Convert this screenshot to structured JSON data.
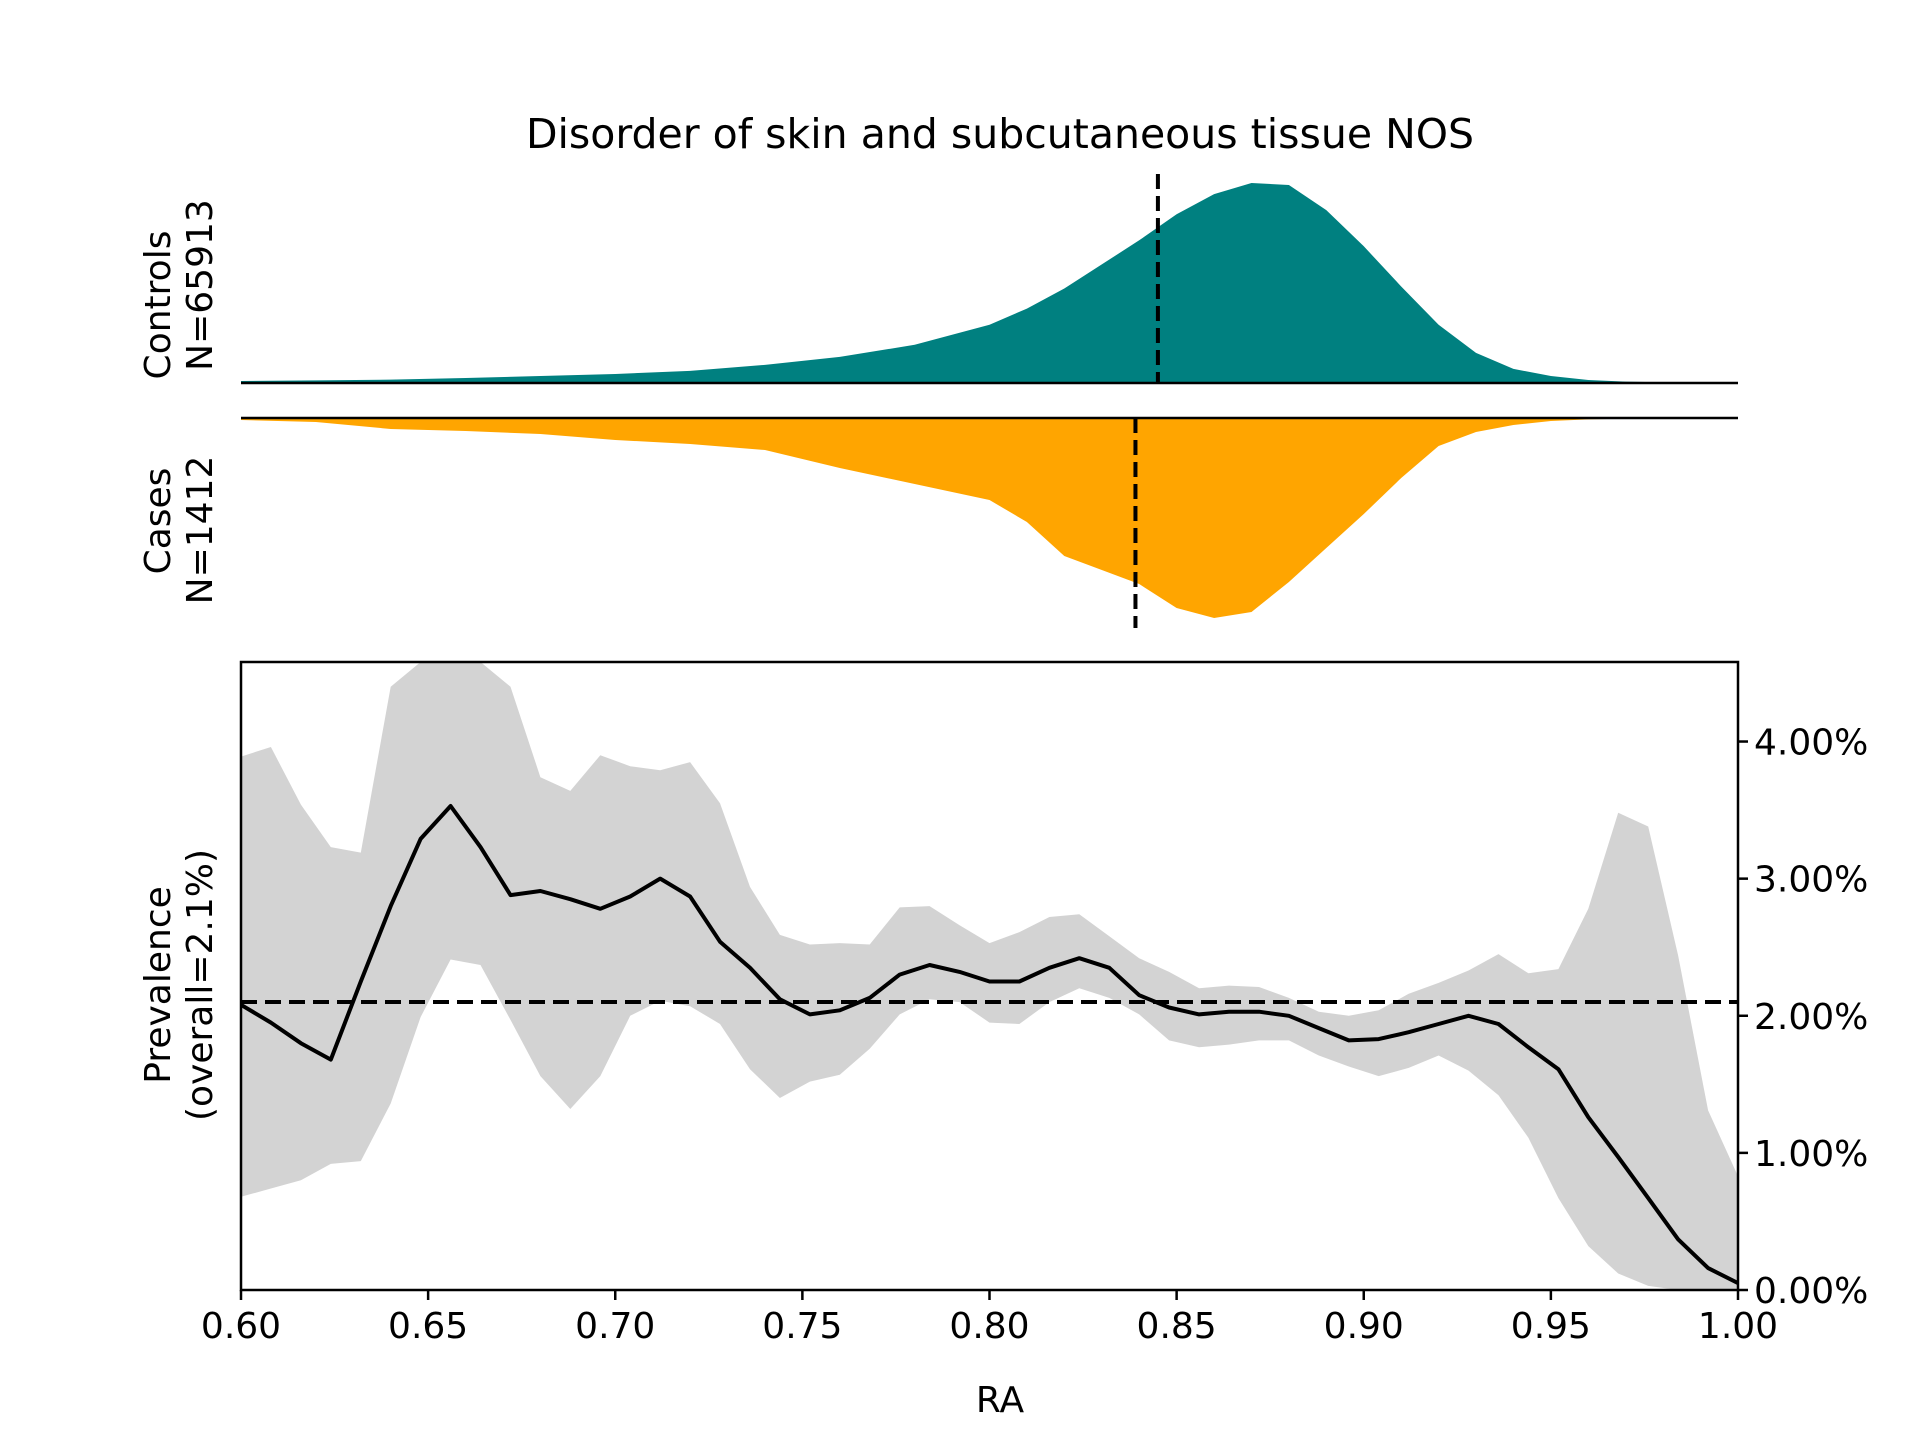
{
  "chart_data": [
    {
      "type": "area",
      "title": "Disorder of skin and subcutaneous tissue NOS",
      "label": "Controls",
      "n_label": "N=65913",
      "color": "#008080",
      "dashed_line_x": 0.845,
      "x": [
        0.6,
        0.62,
        0.64,
        0.66,
        0.68,
        0.7,
        0.72,
        0.74,
        0.76,
        0.78,
        0.8,
        0.81,
        0.82,
        0.83,
        0.84,
        0.85,
        0.86,
        0.87,
        0.88,
        0.89,
        0.9,
        0.91,
        0.92,
        0.93,
        0.94,
        0.95,
        0.96,
        0.97,
        0.98,
        1.0
      ],
      "density": [
        0.01,
        0.013,
        0.017,
        0.025,
        0.035,
        0.045,
        0.06,
        0.09,
        0.13,
        0.19,
        0.29,
        0.37,
        0.47,
        0.59,
        0.71,
        0.84,
        0.94,
        0.995,
        0.985,
        0.86,
        0.68,
        0.48,
        0.29,
        0.15,
        0.07,
        0.035,
        0.015,
        0.007,
        0.003,
        0.002
      ]
    },
    {
      "type": "area",
      "label": "Cases",
      "n_label": "N=1412",
      "color": "#FFA500",
      "dashed_line_x": 0.839,
      "x": [
        0.6,
        0.62,
        0.64,
        0.66,
        0.68,
        0.7,
        0.72,
        0.74,
        0.76,
        0.78,
        0.8,
        0.81,
        0.82,
        0.83,
        0.84,
        0.85,
        0.86,
        0.87,
        0.88,
        0.89,
        0.9,
        0.91,
        0.92,
        0.93,
        0.94,
        0.95,
        0.96,
        0.97,
        0.98,
        1.0
      ],
      "density": [
        0.01,
        0.02,
        0.055,
        0.065,
        0.08,
        0.11,
        0.13,
        0.16,
        0.25,
        0.33,
        0.41,
        0.52,
        0.69,
        0.76,
        0.83,
        0.95,
        1.0,
        0.97,
        0.82,
        0.65,
        0.48,
        0.3,
        0.14,
        0.07,
        0.035,
        0.015,
        0.007,
        0.003,
        0.002,
        0.001
      ]
    },
    {
      "type": "line",
      "xlabel": "RA",
      "ylabel": "Prevalence",
      "ylabel2": "(overall=2.1%)",
      "xlim": [
        0.6,
        1.0
      ],
      "ylim": [
        0.0,
        4.58
      ],
      "x_ticks": [
        0.6,
        0.65,
        0.7,
        0.75,
        0.8,
        0.85,
        0.9,
        0.95,
        1.0
      ],
      "x_tick_labels": [
        "0.60",
        "0.65",
        "0.70",
        "0.75",
        "0.80",
        "0.85",
        "0.90",
        "0.95",
        "1.00"
      ],
      "y_ticks": [
        0,
        1,
        2,
        3,
        4
      ],
      "y_tick_labels": [
        "0.00%",
        "1.00%",
        "2.00%",
        "3.00%",
        "4.00%"
      ],
      "reference_line": 2.1,
      "band_color": "#D3D3D3",
      "line_color": "#000000",
      "x": [
        0.6,
        0.608,
        0.616,
        0.624,
        0.632,
        0.64,
        0.648,
        0.656,
        0.664,
        0.672,
        0.68,
        0.688,
        0.696,
        0.704,
        0.712,
        0.72,
        0.728,
        0.736,
        0.744,
        0.752,
        0.76,
        0.768,
        0.776,
        0.784,
        0.792,
        0.8,
        0.808,
        0.816,
        0.824,
        0.832,
        0.84,
        0.848,
        0.856,
        0.864,
        0.872,
        0.88,
        0.888,
        0.896,
        0.904,
        0.912,
        0.92,
        0.928,
        0.936,
        0.944,
        0.952,
        0.96,
        0.968,
        0.976,
        0.984,
        0.992,
        1.0
      ],
      "y": [
        2.08,
        1.95,
        1.8,
        1.68,
        2.25,
        2.8,
        3.29,
        3.53,
        3.23,
        2.88,
        2.91,
        2.85,
        2.78,
        2.87,
        3.0,
        2.87,
        2.54,
        2.35,
        2.12,
        2.01,
        2.04,
        2.13,
        2.3,
        2.37,
        2.32,
        2.25,
        2.25,
        2.35,
        2.42,
        2.35,
        2.15,
        2.06,
        2.01,
        2.03,
        2.03,
        2.0,
        1.91,
        1.82,
        1.83,
        1.88,
        1.94,
        2.0,
        1.94,
        1.77,
        1.61,
        1.26,
        0.97,
        0.67,
        0.37,
        0.16,
        0.05
      ],
      "lower": [
        0.68,
        0.74,
        0.8,
        0.92,
        0.94,
        1.36,
        1.99,
        2.41,
        2.37,
        1.97,
        1.56,
        1.32,
        1.56,
        2.0,
        2.11,
        2.07,
        1.94,
        1.61,
        1.4,
        1.52,
        1.57,
        1.76,
        2.01,
        2.12,
        2.1,
        1.95,
        1.94,
        2.1,
        2.2,
        2.13,
        2.01,
        1.82,
        1.77,
        1.79,
        1.82,
        1.82,
        1.71,
        1.63,
        1.56,
        1.62,
        1.71,
        1.6,
        1.42,
        1.11,
        0.67,
        0.32,
        0.12,
        0.03,
        0.0,
        0.0,
        0.0
      ],
      "upper": [
        3.89,
        3.96,
        3.54,
        3.23,
        3.19,
        4.4,
        4.58,
        4.58,
        4.58,
        4.4,
        3.74,
        3.64,
        3.9,
        3.82,
        3.79,
        3.85,
        3.55,
        2.94,
        2.59,
        2.52,
        2.53,
        2.52,
        2.79,
        2.8,
        2.66,
        2.53,
        2.61,
        2.72,
        2.74,
        2.58,
        2.42,
        2.32,
        2.2,
        2.22,
        2.21,
        2.13,
        2.03,
        2.0,
        2.04,
        2.16,
        2.24,
        2.33,
        2.45,
        2.31,
        2.34,
        2.78,
        3.48,
        3.38,
        2.44,
        1.31,
        0.83
      ]
    }
  ]
}
